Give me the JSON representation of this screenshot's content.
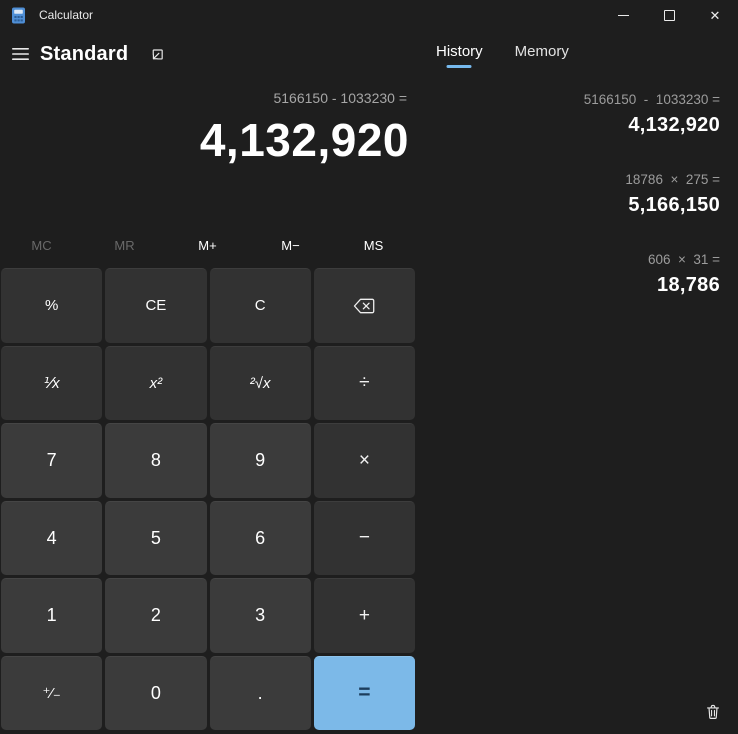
{
  "window": {
    "title": "Calculator"
  },
  "header": {
    "mode": "Standard"
  },
  "display": {
    "expression": "5166150 - 1033230 =",
    "result": "4,132,920"
  },
  "memory": {
    "buttons": [
      {
        "id": "memory-clear",
        "label": "MC",
        "disabled": true
      },
      {
        "id": "memory-recall",
        "label": "MR",
        "disabled": true
      },
      {
        "id": "memory-add",
        "label": "M+",
        "disabled": false
      },
      {
        "id": "memory-subtract",
        "label": "M−",
        "disabled": false
      },
      {
        "id": "memory-store",
        "label": "MS",
        "disabled": false
      }
    ]
  },
  "keypad": {
    "buttons": [
      {
        "id": "percent",
        "label": "%",
        "type": "function"
      },
      {
        "id": "clear-entry",
        "label": "CE",
        "type": "function"
      },
      {
        "id": "clear",
        "label": "C",
        "type": "function"
      },
      {
        "id": "backspace",
        "label": "⌫",
        "type": "function",
        "icon": "backspace-icon"
      },
      {
        "id": "reciprocal",
        "label": "⅟x",
        "type": "function math"
      },
      {
        "id": "square",
        "label": "x²",
        "type": "function math"
      },
      {
        "id": "square-root",
        "label": "²√x",
        "type": "function math"
      },
      {
        "id": "divide",
        "label": "÷",
        "type": "operator"
      },
      {
        "id": "seven",
        "label": "7",
        "type": "digit"
      },
      {
        "id": "eight",
        "label": "8",
        "type": "digit"
      },
      {
        "id": "nine",
        "label": "9",
        "type": "digit"
      },
      {
        "id": "multiply",
        "label": "×",
        "type": "operator"
      },
      {
        "id": "four",
        "label": "4",
        "type": "digit"
      },
      {
        "id": "five",
        "label": "5",
        "type": "digit"
      },
      {
        "id": "six",
        "label": "6",
        "type": "digit"
      },
      {
        "id": "subtract",
        "label": "−",
        "type": "operator"
      },
      {
        "id": "one",
        "label": "1",
        "type": "digit"
      },
      {
        "id": "two",
        "label": "2",
        "type": "digit"
      },
      {
        "id": "three",
        "label": "3",
        "type": "digit"
      },
      {
        "id": "add",
        "label": "+",
        "type": "operator"
      },
      {
        "id": "negate",
        "label": "⁺⁄₋",
        "type": "digit negate"
      },
      {
        "id": "zero",
        "label": "0",
        "type": "digit"
      },
      {
        "id": "decimal",
        "label": ".",
        "type": "digit"
      },
      {
        "id": "equals",
        "label": "=",
        "type": "equals"
      }
    ]
  },
  "history": {
    "tabs": [
      {
        "id": "history",
        "label": "History",
        "active": true
      },
      {
        "id": "memory",
        "label": "Memory",
        "active": false
      }
    ],
    "entries": [
      {
        "expression": "5166150  -  1033230 =",
        "result": "4,132,920"
      },
      {
        "expression": "18786  ×  275 =",
        "result": "5,166,150"
      },
      {
        "expression": "606  ×  31 =",
        "result": "18,786"
      }
    ]
  },
  "icons": {
    "titlebar": [
      "calculator-app-icon",
      "minimize-icon",
      "maximize-icon",
      "close-icon"
    ],
    "header": [
      "hamburger-menu-icon",
      "keep-on-top-icon"
    ],
    "history": [
      "clear-history-trash-icon"
    ],
    "keypad": [
      "backspace-icon"
    ]
  },
  "colors": {
    "background": "#1e1e1e",
    "digit_button": "#3b3b3b",
    "function_button": "#323232",
    "accent_equals": "#7cb9e8",
    "accent_tab_underline": "#76b9ed",
    "expression_text": "#a6a6a6",
    "disabled_text": "#696969"
  }
}
